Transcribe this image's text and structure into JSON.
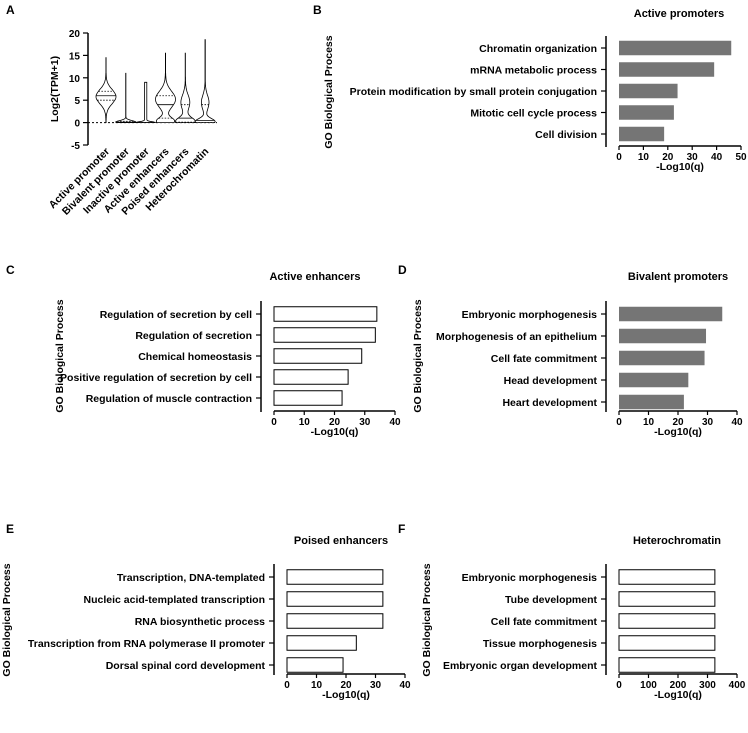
{
  "panel_letters": [
    "A",
    "B",
    "C",
    "D",
    "E",
    "F"
  ],
  "colors": {
    "filled_bar": "#757575",
    "open_bar": "#ffffff",
    "axis": "#000000"
  },
  "chart_data": [
    {
      "id": "A",
      "type": "violin",
      "title": "",
      "ylabel": "Log2(TPM+1)",
      "ylim": [
        -5,
        20
      ],
      "yticks": [
        -5,
        0,
        5,
        10,
        15,
        20
      ],
      "categories": [
        "Active promoter",
        "Bivalent promoter",
        "Inactive promoter",
        "Active enhancers",
        "Poised enhancers",
        "Heterochromatin"
      ],
      "distributions": [
        {
          "min": 0,
          "max": 14.5,
          "median": 6,
          "q1": 5,
          "q3": 7,
          "modes": [
            {
              "center": 5.8,
              "spread": 1.6,
              "weight": 1
            }
          ]
        },
        {
          "min": 0,
          "max": 11,
          "median": 0.1,
          "q1": 0,
          "q3": 0.3,
          "modes": [
            {
              "center": 0.1,
              "spread": 0.35,
              "weight": 1
            }
          ]
        },
        {
          "min": 0,
          "max": 9,
          "median": 0,
          "q1": 0,
          "q3": 0,
          "modes": [
            {
              "center": 0,
              "spread": 0.2,
              "weight": 0.08
            }
          ]
        },
        {
          "min": 0,
          "max": 15.5,
          "median": 4,
          "q1": 1,
          "q3": 6,
          "modes": [
            {
              "center": 0.3,
              "spread": 0.8,
              "weight": 0.9
            },
            {
              "center": 5.2,
              "spread": 1.8,
              "weight": 1
            }
          ]
        },
        {
          "min": 0,
          "max": 15.5,
          "median": 1,
          "q1": 0.1,
          "q3": 4,
          "modes": [
            {
              "center": 0.2,
              "spread": 0.9,
              "weight": 1
            },
            {
              "center": 4.5,
              "spread": 1.7,
              "weight": 0.45
            }
          ]
        },
        {
          "min": 0,
          "max": 18.5,
          "median": 0.5,
          "q1": 0,
          "q3": 4,
          "modes": [
            {
              "center": 0.2,
              "spread": 0.7,
              "weight": 0.8
            },
            {
              "center": 4.5,
              "spread": 1.6,
              "weight": 0.3
            }
          ]
        }
      ],
      "reference_line": 0
    },
    {
      "id": "B",
      "type": "bar",
      "orientation": "horizontal",
      "title": "Active promoters",
      "xlabel": "-Log10(q)",
      "ylabel": "GO Biological Process",
      "xlim": [
        0,
        50
      ],
      "xticks": [
        0,
        10,
        20,
        30,
        40,
        50
      ],
      "fill": "filled",
      "categories": [
        "Chromatin organization",
        "mRNA metabolic process",
        "Protein modification by small protein conjugation",
        "Mitotic cell cycle process",
        "Cell division"
      ],
      "values": [
        46,
        39,
        24,
        22.5,
        18.5
      ]
    },
    {
      "id": "C",
      "type": "bar",
      "orientation": "horizontal",
      "title": "Active enhancers",
      "xlabel": "-Log10(q)",
      "ylabel": "GO Biological Process",
      "xlim": [
        0,
        40
      ],
      "xticks": [
        0,
        10,
        20,
        30,
        40
      ],
      "fill": "open",
      "categories": [
        "Regulation of secretion by cell",
        "Regulation of secretion",
        "Chemical homeostasis",
        "Positive regulation of secretion by cell",
        "Regulation of muscle contraction"
      ],
      "values": [
        34,
        33.5,
        29,
        24.5,
        22.5
      ]
    },
    {
      "id": "D",
      "type": "bar",
      "orientation": "horizontal",
      "title": "Bivalent promoters",
      "xlabel": "-Log10(q)",
      "ylabel": "GO Biological Process",
      "xlim": [
        0,
        40
      ],
      "xticks": [
        0,
        10,
        20,
        30,
        40
      ],
      "fill": "filled",
      "categories": [
        "Embryonic morphogenesis",
        "Morphogenesis of an epithelium",
        "Cell fate commitment",
        "Head development",
        "Heart development"
      ],
      "values": [
        35,
        29.5,
        29,
        23.5,
        22
      ]
    },
    {
      "id": "E",
      "type": "bar",
      "orientation": "horizontal",
      "title": "Poised enhancers",
      "xlabel": "-Log10(q)",
      "ylabel": "GO Biological Process",
      "xlim": [
        0,
        40
      ],
      "xticks": [
        0,
        10,
        20,
        30,
        40
      ],
      "fill": "open",
      "categories": [
        "Transcription, DNA-templated",
        "Nucleic acid-templated transcription",
        "RNA biosynthetic process",
        "Transcription from RNA polymerase II promoter",
        "Dorsal spinal cord development"
      ],
      "values": [
        32.5,
        32.5,
        32.5,
        23.5,
        19
      ]
    },
    {
      "id": "F",
      "type": "bar",
      "orientation": "horizontal",
      "title": "Heterochromatin",
      "xlabel": "-Log10(q)",
      "ylabel": "GO Biological Process",
      "xlim": [
        0,
        400
      ],
      "xticks": [
        0,
        100,
        200,
        300,
        400
      ],
      "fill": "open",
      "categories": [
        "Embryonic morphogenesis",
        "Tube development",
        "Cell fate commitment",
        "Tissue morphogenesis",
        "Embryonic organ development"
      ],
      "values": [
        325,
        325,
        325,
        325,
        325
      ]
    }
  ]
}
